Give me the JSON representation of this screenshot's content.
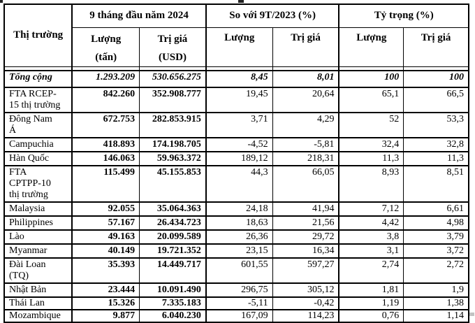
{
  "table": {
    "header": {
      "market": "Thị trường",
      "groups": [
        {
          "label": "9 tháng đầu năm 2024"
        },
        {
          "label": "So với 9T/2023 (%)"
        },
        {
          "label": "Tỷ trọng (%)"
        }
      ],
      "sub": [
        "Lượng\n(tấn)",
        "Trị giá\n(USD)",
        "Lượng",
        "Trị giá",
        "Lượng",
        "Trị giá"
      ]
    },
    "rows": [
      {
        "market": "Tổng cộng",
        "values": [
          "1.293.209",
          "530.656.275",
          "8,45",
          "8,01",
          "100",
          "100"
        ]
      },
      {
        "market": "FTA RCEP-\n15 thị trường",
        "values": [
          "842.260",
          "352.908.777",
          "19,45",
          "20,64",
          "65,1",
          "66,5"
        ]
      },
      {
        "market": "Đông Nam\nÁ",
        "values": [
          "672.753",
          "282.853.915",
          "3,71",
          "4,29",
          "52",
          "53,3"
        ]
      },
      {
        "market": "Campuchia",
        "values": [
          "418.893",
          "174.198.705",
          "-4,52",
          "-5,81",
          "32,4",
          "32,8"
        ]
      },
      {
        "market": "Hàn Quốc",
        "values": [
          "146.063",
          "59.963.372",
          "189,12",
          "218,31",
          "11,3",
          "11,3"
        ]
      },
      {
        "market": "FTA\nCPTPP-10\nthị trường",
        "values": [
          "115.499",
          "45.155.853",
          "44,3",
          "66,05",
          "8,93",
          "8,51"
        ]
      },
      {
        "market": "Malaysia",
        "values": [
          "92.055",
          "35.064.363",
          "24,18",
          "41,94",
          "7,12",
          "6,61"
        ]
      },
      {
        "market": "Philippines",
        "values": [
          "57.167",
          "26.434.723",
          "18,63",
          "21,56",
          "4,42",
          "4,98"
        ]
      },
      {
        "market": "Lào",
        "values": [
          "49.163",
          "20.099.589",
          "26,36",
          "29,72",
          "3,8",
          "3,79"
        ]
      },
      {
        "market": "Myanmar",
        "values": [
          "40.149",
          "19.721.352",
          "23,15",
          "16,34",
          "3,1",
          "3,72"
        ]
      },
      {
        "market": "Đài Loan\n(TQ)",
        "values": [
          "35.393",
          "14.449.717",
          "601,55",
          "597,27",
          "2,74",
          "2,72"
        ]
      },
      {
        "market": "Nhật Bản",
        "values": [
          "23.444",
          "10.091.490",
          "296,75",
          "305,12",
          "1,81",
          "1,9"
        ]
      },
      {
        "market": "Thái Lan",
        "values": [
          "15.326",
          "7.335.183",
          "-5,11",
          "-0,42",
          "1,19",
          "1,38"
        ]
      },
      {
        "market": "Mozambique",
        "values": [
          "9.877",
          "6.040.230",
          "167,09",
          "114,23",
          "0,76",
          "1,14"
        ]
      }
    ]
  }
}
